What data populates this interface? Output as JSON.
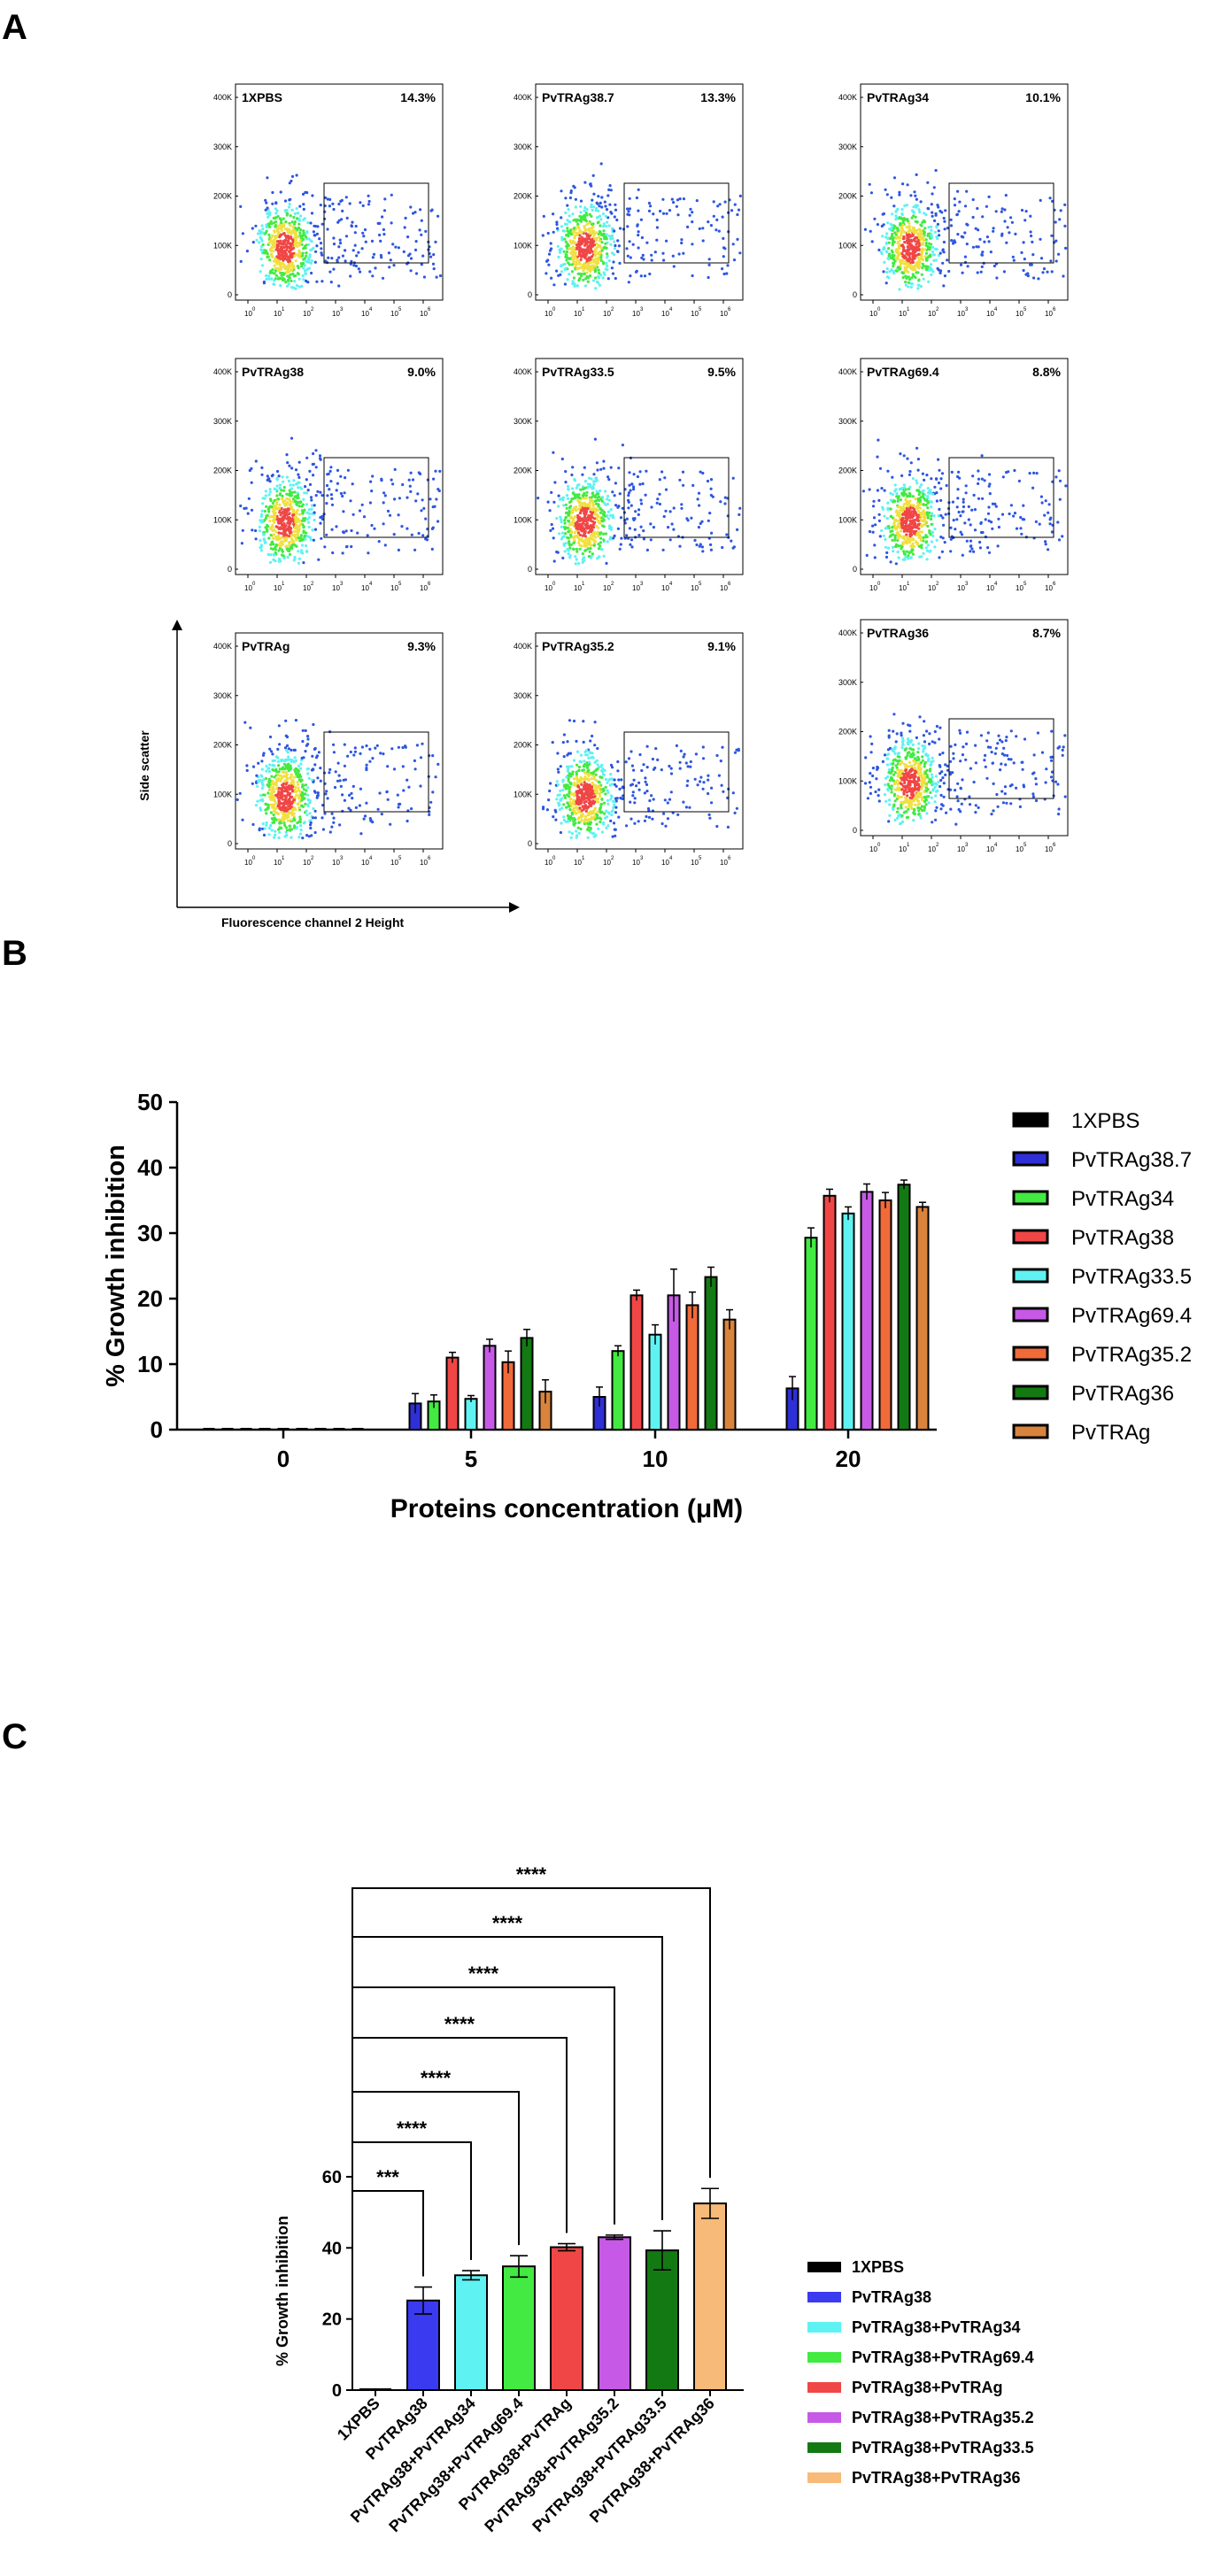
{
  "panel_labels": {
    "a": "A",
    "b": "B",
    "c": "C"
  },
  "colors": {
    "black": "#000000",
    "navy": "#2f2fd8",
    "cyan": "#5ff2f2",
    "green": "#42ea42",
    "red": "#f04646",
    "purple": "#c65ae6",
    "darkgreen": "#137a13",
    "peach": "#f8ba78",
    "orange": "#f06a3a",
    "darkorange": "#d8843c"
  },
  "flow_panel": {
    "axis_label_y": "Side scatter",
    "axis_label_x": "Fluorescence channel 2 Height",
    "y_ticks": [
      "400K",
      "300K",
      "200K",
      "100K",
      "0"
    ],
    "plots": [
      {
        "name": "1XPBS",
        "percent": "14.3%"
      },
      {
        "name": "PvTRAg38.7",
        "percent": "13.3%"
      },
      {
        "name": "PvTRAg34",
        "percent": "10.1%"
      },
      {
        "name": "PvTRAg38",
        "percent": "9.0%"
      },
      {
        "name": "PvTRAg33.5",
        "percent": "9.5%"
      },
      {
        "name": "PvTRAg69.4",
        "percent": "8.8%"
      },
      {
        "name": "PvTRAg",
        "percent": "9.3%"
      },
      {
        "name": "PvTRAg35.2",
        "percent": "9.1%"
      },
      {
        "name": "PvTRAg36",
        "percent": "8.7%"
      }
    ]
  },
  "chart_data": [
    {
      "type": "bar",
      "panel": "B",
      "title": "",
      "xlabel": "Proteins concentration (μM)",
      "ylabel": "% Growth inhibition",
      "ylim": [
        0,
        50
      ],
      "yticks": [
        "0",
        "10",
        "20",
        "30",
        "40",
        "50"
      ],
      "categories": [
        "0",
        "5",
        "10",
        "20"
      ],
      "series": [
        {
          "name": "1XPBS",
          "color": "#000000",
          "values": [
            0,
            0,
            0,
            0
          ],
          "errors": [
            0,
            0,
            0,
            0
          ]
        },
        {
          "name": "PvTRAg38.7",
          "color": "#2f2fd8",
          "values": [
            0,
            4,
            5,
            6.3
          ],
          "errors": [
            0,
            1.5,
            1.5,
            1.8
          ]
        },
        {
          "name": "PvTRAg34",
          "color": "#42ea42",
          "values": [
            0,
            4.3,
            12,
            29.3
          ],
          "errors": [
            0,
            1,
            0.8,
            1.5
          ]
        },
        {
          "name": "PvTRAg38",
          "color": "#f04646",
          "values": [
            0,
            11,
            20.5,
            35.7
          ],
          "errors": [
            0,
            0.8,
            0.8,
            1
          ]
        },
        {
          "name": "PvTRAg33.5",
          "color": "#5ff2f2",
          "values": [
            0,
            4.7,
            14.5,
            33
          ],
          "errors": [
            0,
            0.5,
            1.5,
            1
          ]
        },
        {
          "name": "PvTRAg69.4",
          "color": "#c65ae6",
          "values": [
            0,
            12.8,
            20.5,
            36.3
          ],
          "errors": [
            0,
            1,
            4,
            1.2
          ]
        },
        {
          "name": "PvTRAg35.2",
          "color": "#f06a3a",
          "values": [
            0,
            10.3,
            19,
            35
          ],
          "errors": [
            0,
            1.7,
            2,
            1.2
          ]
        },
        {
          "name": "PvTRAg36",
          "color": "#137a13",
          "values": [
            0,
            14,
            23.3,
            37.4
          ],
          "errors": [
            0,
            1.3,
            1.5,
            0.7
          ]
        },
        {
          "name": "PvTRAg",
          "color": "#d8843c",
          "values": [
            0,
            5.8,
            16.8,
            34
          ],
          "errors": [
            0,
            1.8,
            1.5,
            0.7
          ]
        }
      ]
    },
    {
      "type": "bar",
      "panel": "C",
      "title": "",
      "xlabel": "",
      "ylabel": "% Growth inhibition",
      "ylim": [
        0,
        60
      ],
      "yticks": [
        "0",
        "20",
        "40",
        "60"
      ],
      "categories": [
        "1XPBS",
        "PvTRAg38",
        "PvTRAg38+PvTRAg34",
        "PvTRAg38+PvTRAg69.4",
        "PvTRAg38+PvTRAg",
        "PvTRAg38+PvTRAg35.2",
        "PvTRAg38+PvTRAg33.5",
        "PvTRAg38+PvTRAg36"
      ],
      "values": [
        0,
        25.2,
        32.3,
        34.8,
        40.2,
        43,
        39.3,
        52.5
      ],
      "errors": [
        0,
        3.8,
        1.3,
        3,
        1,
        0.6,
        5.5,
        4.2
      ],
      "colors": [
        "#000000",
        "#3a3af0",
        "#5ff2f2",
        "#42ea42",
        "#f04646",
        "#c65ae6",
        "#137a13",
        "#f8ba78"
      ],
      "legend": [
        "1XPBS",
        "PvTRAg38",
        "PvTRAg38+PvTRAg34",
        "PvTRAg38+PvTRAg69.4",
        "PvTRAg38+PvTRAg",
        "PvTRAg38+PvTRAg35.2",
        "PvTRAg38+PvTRAg33.5",
        "PvTRAg38+PvTRAg36"
      ],
      "significance": [
        "***",
        "****",
        "****",
        "****",
        "****",
        "****",
        "****"
      ]
    }
  ]
}
